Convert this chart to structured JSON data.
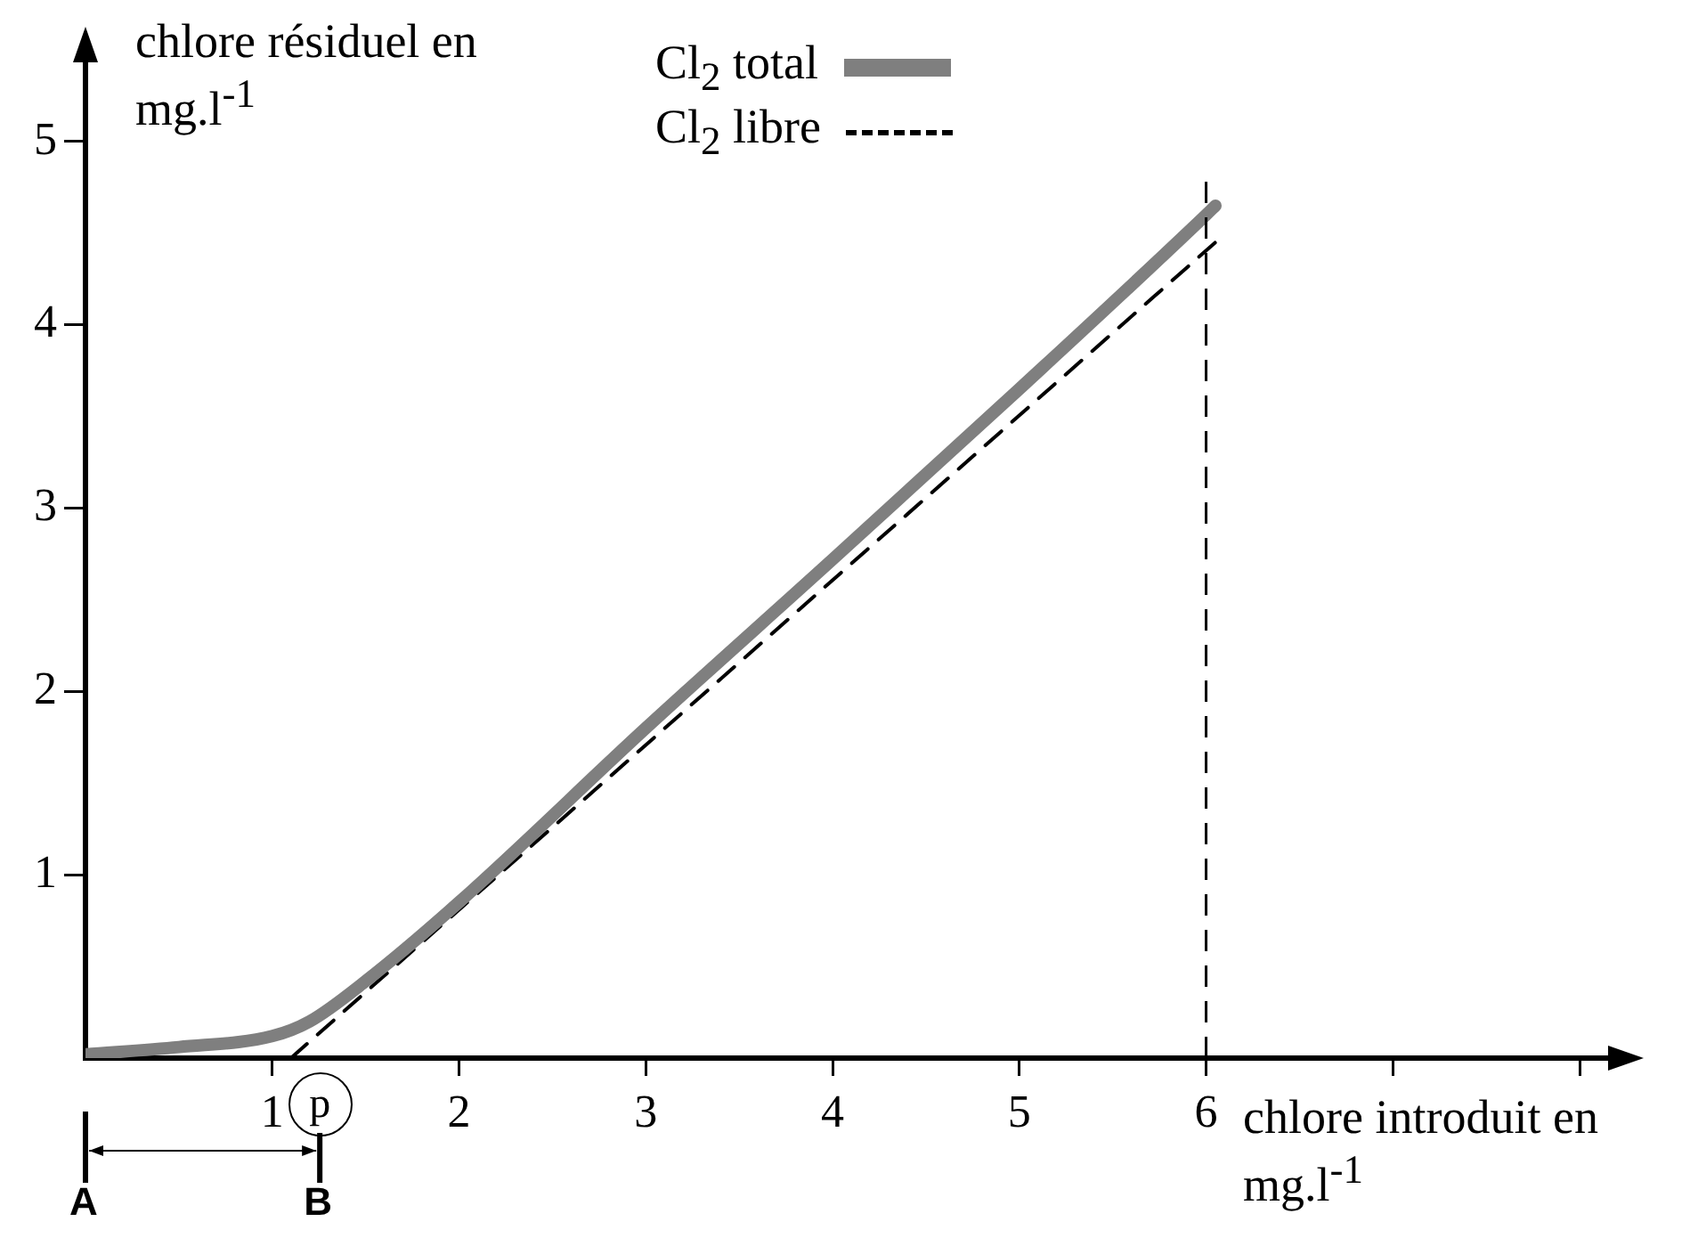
{
  "chart_data": {
    "type": "line",
    "xlabel": "chlore introduit en mg.l$^{-1}$",
    "ylabel": "chlore résiduel en mg.l$^{-1}$",
    "xlim": [
      0,
      8.2
    ],
    "ylim": [
      0,
      5.5
    ],
    "xticks": [
      1,
      2,
      3,
      4,
      5,
      6,
      {
        "value": 7,
        "label": null
      },
      {
        "value": 8,
        "label": null
      }
    ],
    "yticks": [
      1,
      2,
      3,
      4,
      5
    ],
    "grid": false,
    "legend": "top",
    "marker": "none",
    "series": [
      {
        "name": "Cl$_{2}$ total",
        "color": "#7f7f7f",
        "line_style": "solid",
        "x": [
          0,
          0.5,
          1,
          1.2,
          1.5,
          2,
          3,
          4,
          5,
          6,
          6.05
        ],
        "values": [
          0.02,
          0.06,
          0.12,
          0.2,
          0.42,
          0.85,
          1.8,
          2.72,
          3.65,
          4.6,
          4.65
        ]
      },
      {
        "name": "Cl$_{2}$ libre",
        "color": "#000000",
        "line_style": "dashed",
        "x": [
          1.1,
          6.05
        ],
        "values": [
          0,
          4.45
        ]
      }
    ],
    "ref_lines": [
      {
        "axis": "x",
        "value": 6,
        "line_style": "dashed",
        "color": "#000000"
      }
    ],
    "annotations": [
      "A",
      "B",
      "p"
    ]
  }
}
